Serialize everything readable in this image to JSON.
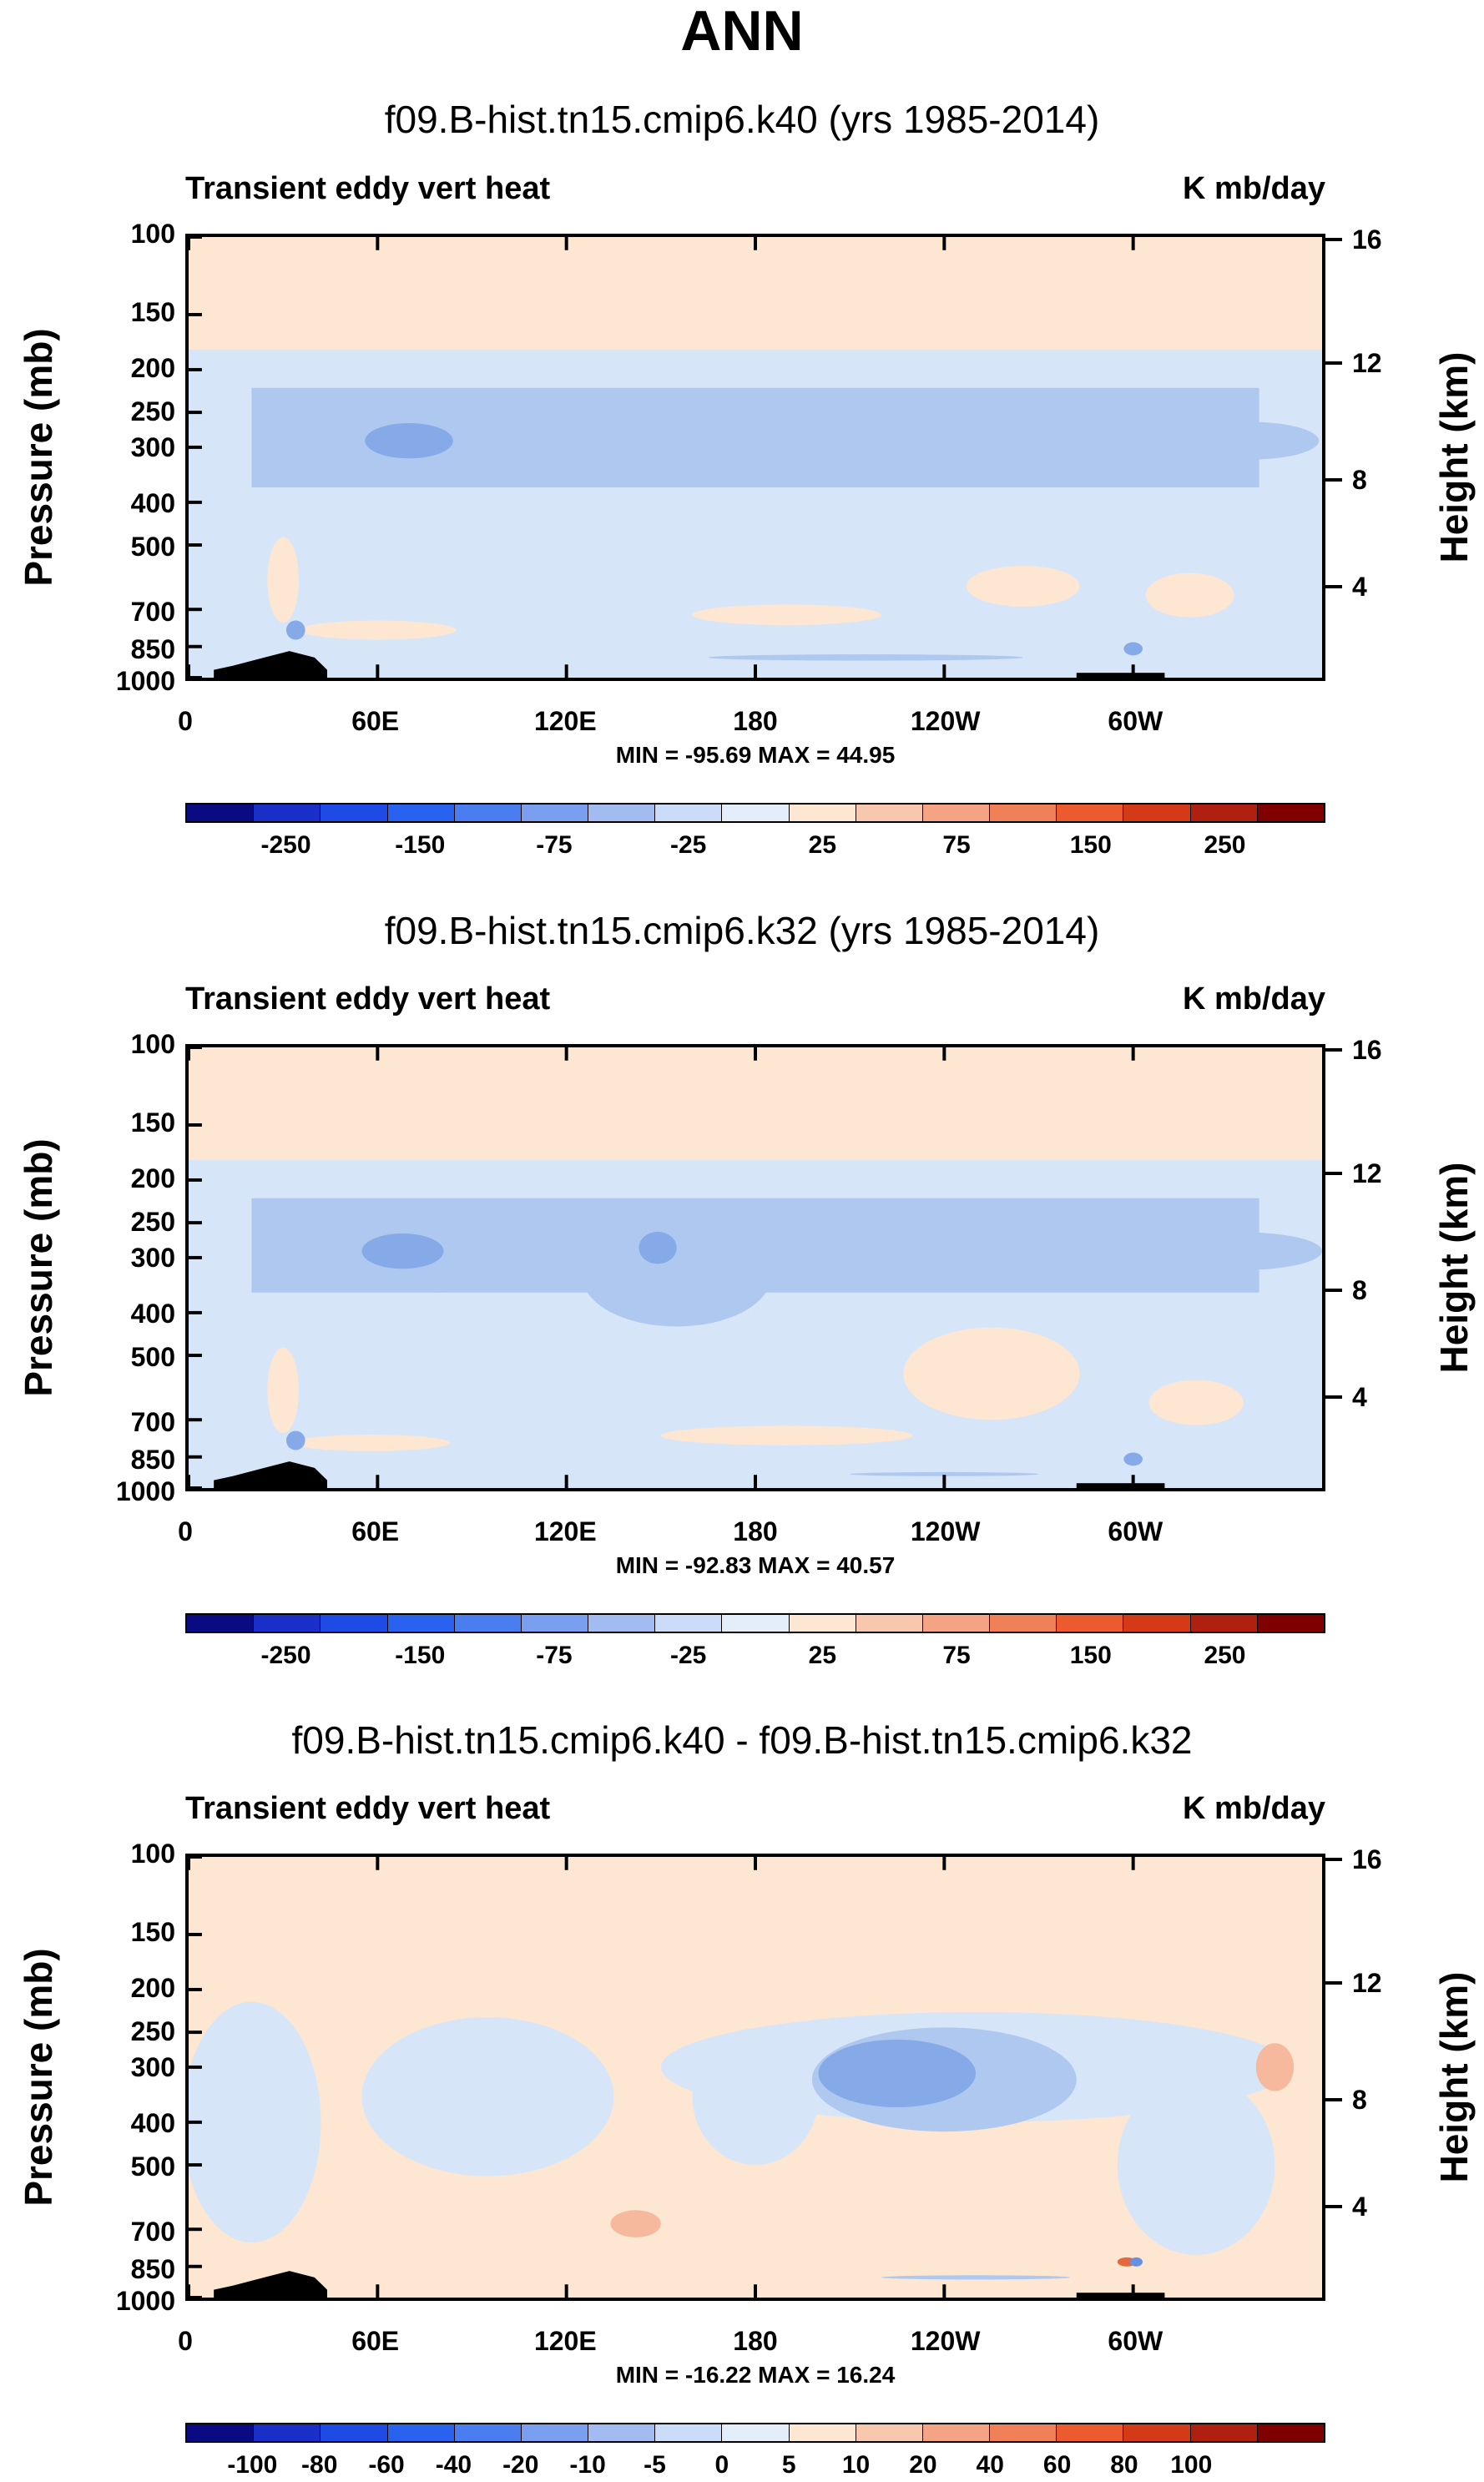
{
  "title": "ANN",
  "colors": {
    "pos_light": "#fde6d2",
    "neg_light": "#d6e6f8",
    "neg_mid": "#aec8f0",
    "neg_strong": "#86aae8",
    "neg_core": "#6890e0",
    "pos_mid": "#f6b99e",
    "pos_core": "#e4683e",
    "land": "#000000"
  },
  "chart_data": [
    {
      "type": "heatmap",
      "title": "f09.B-hist.tn15.cmip6.k40 (yrs 1985-2014)",
      "variable": "Transient eddy vert heat",
      "units": "K mb/day",
      "ylabel": "Pressure (mb)",
      "ylabel_right": "Height (km)",
      "y_ticks": [
        "100",
        "150",
        "200",
        "250",
        "300",
        "400",
        "500",
        "700",
        "850",
        "1000"
      ],
      "y_right_ticks": [
        "16",
        "12",
        "8",
        "4"
      ],
      "x_ticks": [
        "0",
        "60E",
        "120E",
        "180",
        "120W",
        "60W"
      ],
      "x_range": [
        0,
        360
      ],
      "y_range_mb": [
        1000,
        100
      ],
      "stats": "MIN = -95.69  MAX = 44.95",
      "colorbar_labels": [
        "-250",
        "-150",
        "-75",
        "-25",
        "25",
        "75",
        "150",
        "250"
      ],
      "colorbar_colors": [
        "#0a0a82",
        "#1a2ec8",
        "#1e4ae6",
        "#2a62f0",
        "#4a7ef0",
        "#7a9ef0",
        "#a2bcf2",
        "#cadcf8",
        "#e4eefb",
        "#fde6d2",
        "#f8c8ae",
        "#f4a484",
        "#f08058",
        "#ec5a30",
        "#d43a18",
        "#b02010",
        "#800000"
      ]
    },
    {
      "type": "heatmap",
      "title": "f09.B-hist.tn15.cmip6.k32 (yrs 1985-2014)",
      "variable": "Transient eddy vert heat",
      "units": "K mb/day",
      "ylabel": "Pressure (mb)",
      "ylabel_right": "Height (km)",
      "y_ticks": [
        "100",
        "150",
        "200",
        "250",
        "300",
        "400",
        "500",
        "700",
        "850",
        "1000"
      ],
      "y_right_ticks": [
        "16",
        "12",
        "8",
        "4"
      ],
      "x_ticks": [
        "0",
        "60E",
        "120E",
        "180",
        "120W",
        "60W"
      ],
      "x_range": [
        0,
        360
      ],
      "y_range_mb": [
        1000,
        100
      ],
      "stats": "MIN = -92.83  MAX = 40.57",
      "colorbar_labels": [
        "-250",
        "-150",
        "-75",
        "-25",
        "25",
        "75",
        "150",
        "250"
      ],
      "colorbar_colors": [
        "#0a0a82",
        "#1a2ec8",
        "#1e4ae6",
        "#2a62f0",
        "#4a7ef0",
        "#7a9ef0",
        "#a2bcf2",
        "#cadcf8",
        "#e4eefb",
        "#fde6d2",
        "#f8c8ae",
        "#f4a484",
        "#f08058",
        "#ec5a30",
        "#d43a18",
        "#b02010",
        "#800000"
      ]
    },
    {
      "type": "heatmap",
      "title": "f09.B-hist.tn15.cmip6.k40 - f09.B-hist.tn15.cmip6.k32",
      "variable": "Transient eddy vert heat",
      "units": "K mb/day",
      "ylabel": "Pressure (mb)",
      "ylabel_right": "Height (km)",
      "y_ticks": [
        "100",
        "150",
        "200",
        "250",
        "300",
        "400",
        "500",
        "700",
        "850",
        "1000"
      ],
      "y_right_ticks": [
        "16",
        "12",
        "8",
        "4"
      ],
      "x_ticks": [
        "0",
        "60E",
        "120E",
        "180",
        "120W",
        "60W"
      ],
      "x_range": [
        0,
        360
      ],
      "y_range_mb": [
        1000,
        100
      ],
      "stats": "MIN = -16.22  MAX = 16.24",
      "colorbar_labels": [
        "-100",
        "-80",
        "-60",
        "-40",
        "-20",
        "-10",
        "-5",
        "0",
        "5",
        "10",
        "20",
        "40",
        "60",
        "80",
        "100"
      ],
      "colorbar_colors": [
        "#0a0a82",
        "#1a2ec8",
        "#1e4ae6",
        "#2a62f0",
        "#4a7ef0",
        "#7a9ef0",
        "#a2bcf2",
        "#cadcf8",
        "#e4eefb",
        "#fde6d2",
        "#f8c8ae",
        "#f4a484",
        "#f08058",
        "#ec5a30",
        "#d43a18",
        "#b02010",
        "#800000"
      ]
    }
  ]
}
